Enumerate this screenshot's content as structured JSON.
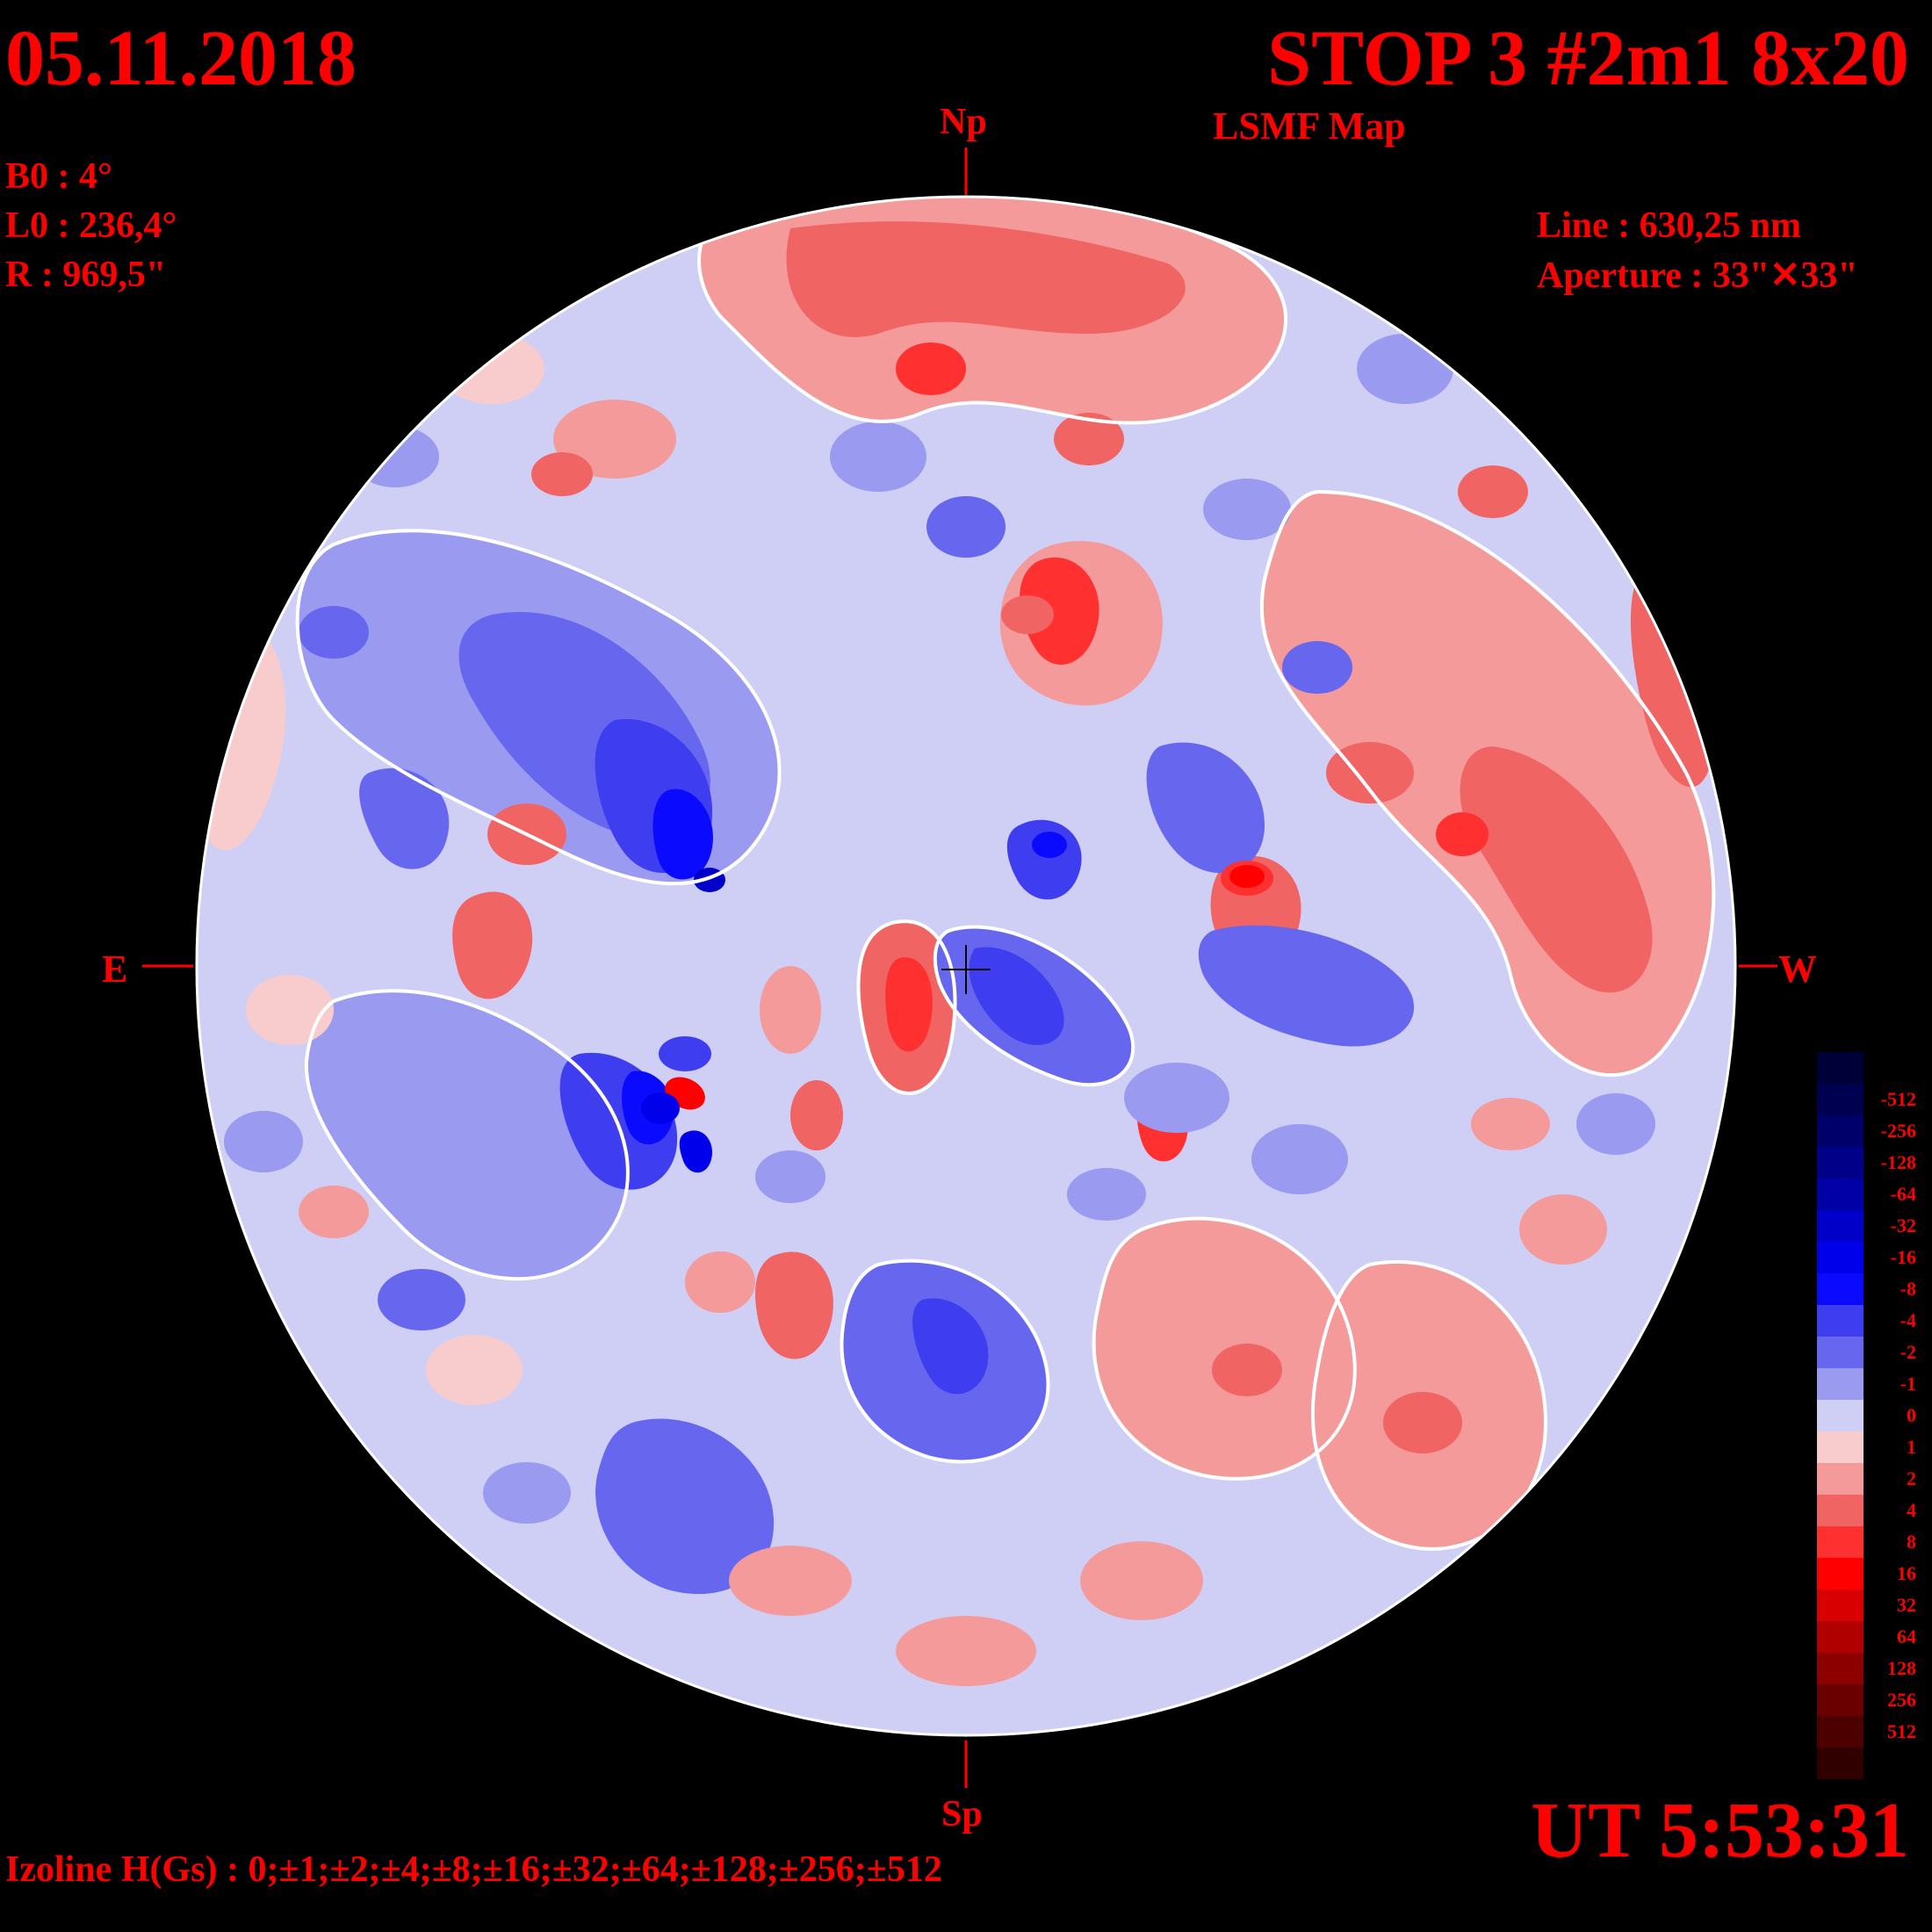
{
  "header": {
    "date": "05.11.2018",
    "title": "STOP 3 #2m1 8x20",
    "subtitle": "LSMF  Map"
  },
  "ephemeris": {
    "b0": "B0 : 4°",
    "l0": "L0 : 236,4°",
    "radius": "R  : 969,5\""
  },
  "instrument": {
    "line": "Line :  630,25 nm",
    "aperture": "Aperture : 33\"✕33\""
  },
  "directions": {
    "north": "Np",
    "south": "Sp",
    "east": "E",
    "west": "W"
  },
  "time": "UT 5:53:31",
  "izoline": "Izoline H(Gs) : 0;±1;±2;±4;±8;±16;±32;±64;±128;±256;±512",
  "colorbar": {
    "levels": [
      {
        "label": "",
        "color": "#000038"
      },
      {
        "label": "-512",
        "color": "#000050"
      },
      {
        "label": "-256",
        "color": "#00006a"
      },
      {
        "label": "-128",
        "color": "#000088"
      },
      {
        "label": "-64",
        "color": "#0000a6"
      },
      {
        "label": "-32",
        "color": "#0000c8"
      },
      {
        "label": "-16",
        "color": "#0000ea"
      },
      {
        "label": "-8",
        "color": "#0a0aff"
      },
      {
        "label": "-4",
        "color": "#3e3ef0"
      },
      {
        "label": "-2",
        "color": "#6666ee"
      },
      {
        "label": "-1",
        "color": "#9a9af0"
      },
      {
        "label": "0",
        "color": "#cfcff6"
      },
      {
        "label": "1",
        "color": "#f8cccc"
      },
      {
        "label": "2",
        "color": "#f59a9a"
      },
      {
        "label": "4",
        "color": "#f06464"
      },
      {
        "label": "8",
        "color": "#ff3030"
      },
      {
        "label": "16",
        "color": "#ff0000"
      },
      {
        "label": "32",
        "color": "#d80000"
      },
      {
        "label": "64",
        "color": "#b00000"
      },
      {
        "label": "128",
        "color": "#8c0000"
      },
      {
        "label": "256",
        "color": "#6a0000"
      },
      {
        "label": "512",
        "color": "#4c0000"
      },
      {
        "label": "",
        "color": "#300000"
      }
    ]
  },
  "colors": {
    "text": "#ff0000",
    "background": "#000000",
    "isoline": "#ffffff"
  }
}
